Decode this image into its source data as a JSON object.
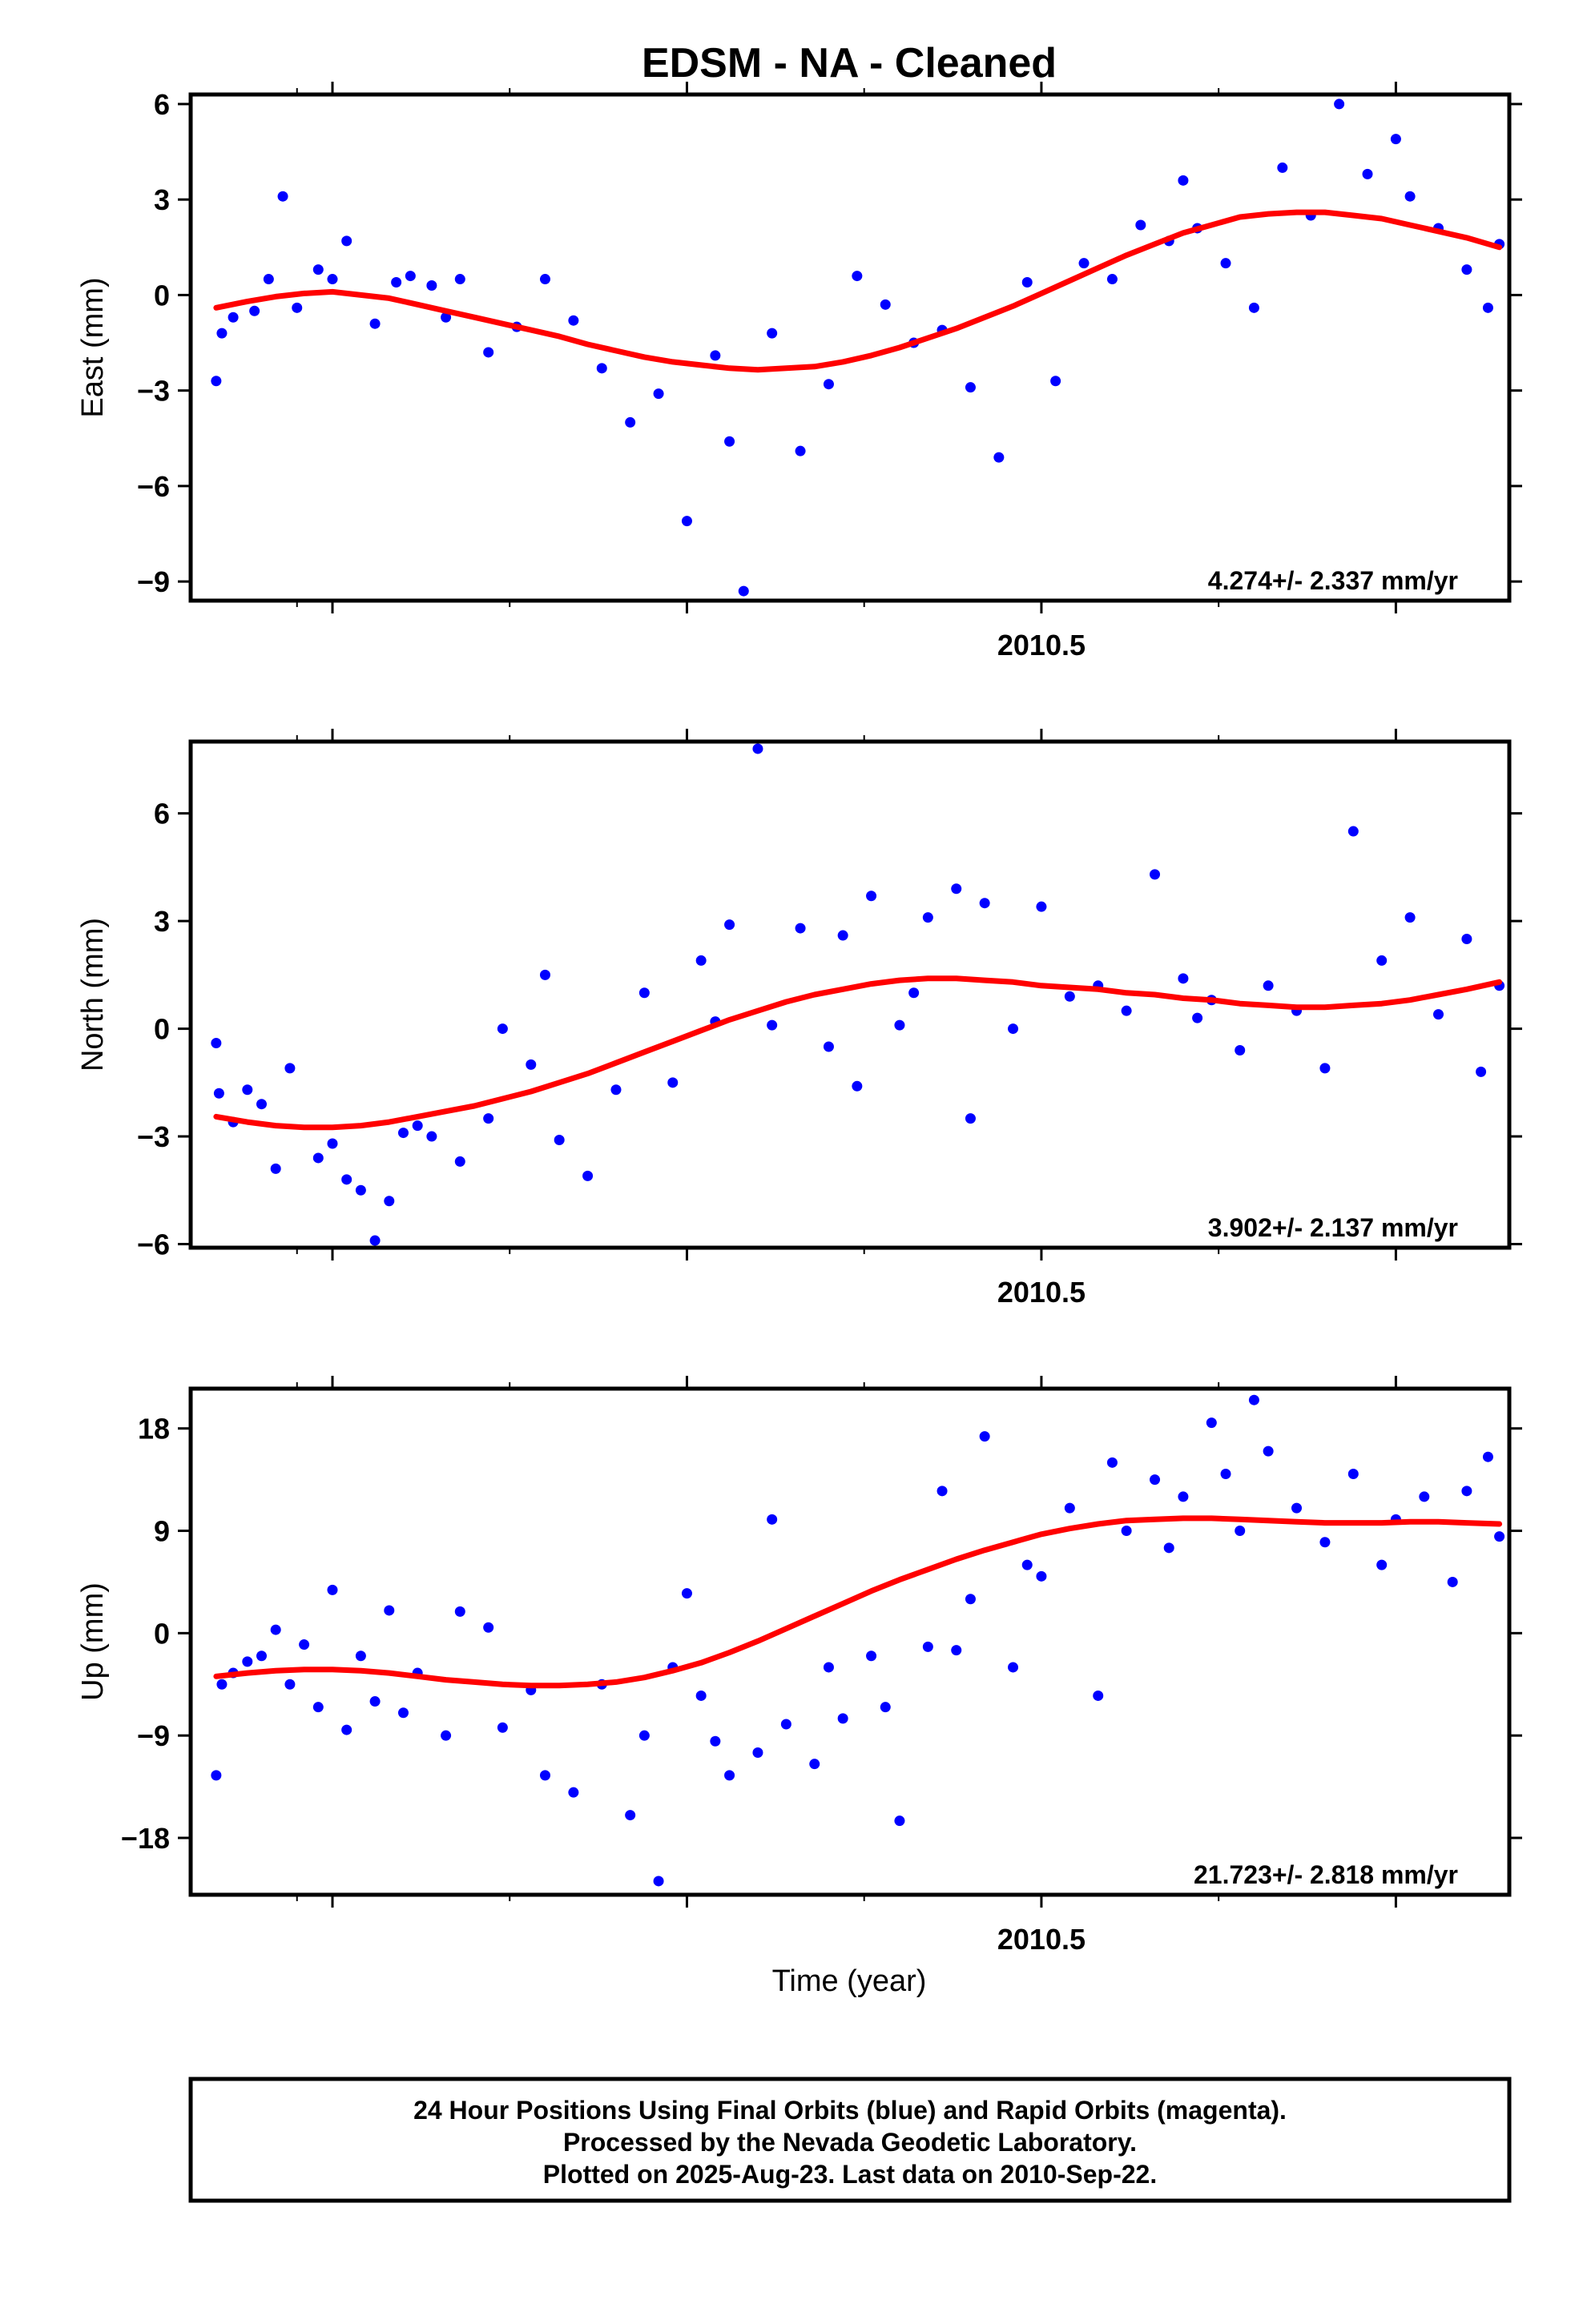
{
  "title": "EDSM  - NA - Cleaned",
  "colors": {
    "final_orbits": "#0000ff",
    "model": "#ff0000",
    "frame": "#000000"
  },
  "x_axis_label": "Time (year)",
  "footer": {
    "line1": "24 Hour Positions Using Final Orbits (blue) and Rapid Orbits (magenta).",
    "line2": "Processed by the Nevada Geodetic Laboratory.",
    "line3": "Plotted on 2025-Aug-23. Last data on 2010-Sep-22."
  },
  "chart_data": [
    {
      "type": "scatter",
      "ylabel": "East (mm)",
      "rate_label": "4.274+/- 2.337 mm/yr",
      "xlim": [
        2009.9,
        2010.83
      ],
      "ylim": [
        -9.6,
        6.3
      ],
      "yticks": [
        -9,
        -6,
        -3,
        0,
        3,
        6
      ],
      "xtick_labels": [
        {
          "x": 2010.5,
          "label": "2010.5"
        }
      ],
      "series": [
        {
          "role": "data",
          "x": [
            2009.918,
            2009.922,
            2009.93,
            2009.945,
            2009.955,
            2009.965,
            2009.975,
            2009.99,
            2010.0,
            2010.01,
            2010.03,
            2010.045,
            2010.055,
            2010.07,
            2010.08,
            2010.09,
            2010.11,
            2010.13,
            2010.15,
            2010.17,
            2010.19,
            2010.21,
            2010.23,
            2010.25,
            2010.27,
            2010.28,
            2010.29,
            2010.31,
            2010.33,
            2010.35,
            2010.37,
            2010.39,
            2010.41,
            2010.43,
            2010.45,
            2010.47,
            2010.49,
            2010.51,
            2010.53,
            2010.55,
            2010.57,
            2010.59,
            2010.6,
            2010.61,
            2010.63,
            2010.65,
            2010.67,
            2010.69,
            2010.71,
            2010.73,
            2010.75,
            2010.76,
            2010.78,
            2010.8,
            2010.815,
            2010.823
          ],
          "y": [
            -2.7,
            -1.2,
            -0.7,
            -0.5,
            0.5,
            3.1,
            -0.4,
            0.8,
            0.5,
            1.7,
            -0.9,
            0.4,
            0.6,
            0.3,
            -0.7,
            0.5,
            -1.8,
            -1.0,
            0.5,
            -0.8,
            -2.3,
            -4.0,
            -3.1,
            -7.1,
            -1.9,
            -4.6,
            -9.3,
            -1.2,
            -4.9,
            -2.8,
            0.6,
            -0.3,
            -1.5,
            -1.1,
            -2.9,
            -5.1,
            0.4,
            -2.7,
            1.0,
            0.5,
            2.2,
            1.7,
            3.6,
            2.1,
            1.0,
            -0.4,
            4.0,
            2.5,
            6.0,
            3.8,
            4.9,
            3.1,
            2.1,
            0.8,
            -0.4,
            1.6
          ]
        },
        {
          "role": "model",
          "x": [
            2009.918,
            2009.94,
            2009.96,
            2009.98,
            2010.0,
            2010.02,
            2010.04,
            2010.06,
            2010.08,
            2010.1,
            2010.12,
            2010.14,
            2010.16,
            2010.18,
            2010.2,
            2010.22,
            2010.24,
            2010.26,
            2010.28,
            2010.3,
            2010.32,
            2010.34,
            2010.36,
            2010.38,
            2010.4,
            2010.42,
            2010.44,
            2010.46,
            2010.48,
            2010.5,
            2010.52,
            2010.54,
            2010.56,
            2010.58,
            2010.6,
            2010.62,
            2010.64,
            2010.66,
            2010.68,
            2010.7,
            2010.72,
            2010.74,
            2010.76,
            2010.78,
            2010.8,
            2010.823
          ],
          "y": [
            -0.4,
            -0.2,
            -0.05,
            0.05,
            0.1,
            0.0,
            -0.1,
            -0.3,
            -0.5,
            -0.7,
            -0.9,
            -1.1,
            -1.3,
            -1.55,
            -1.75,
            -1.95,
            -2.1,
            -2.2,
            -2.3,
            -2.35,
            -2.3,
            -2.25,
            -2.1,
            -1.9,
            -1.65,
            -1.35,
            -1.05,
            -0.7,
            -0.35,
            0.05,
            0.45,
            0.85,
            1.25,
            1.6,
            1.95,
            2.2,
            2.45,
            2.55,
            2.6,
            2.6,
            2.5,
            2.4,
            2.2,
            2.0,
            1.8,
            1.5
          ]
        }
      ]
    },
    {
      "type": "scatter",
      "ylabel": "North (mm)",
      "rate_label": "3.902+/- 2.137 mm/yr",
      "xlim": [
        2009.9,
        2010.83
      ],
      "ylim": [
        -6.1,
        8.0
      ],
      "yticks": [
        -6,
        -3,
        0,
        3,
        6
      ],
      "xtick_labels": [
        {
          "x": 2010.5,
          "label": "2010.5"
        }
      ],
      "series": [
        {
          "role": "data",
          "x": [
            2009.918,
            2009.92,
            2009.93,
            2009.94,
            2009.95,
            2009.96,
            2009.97,
            2009.99,
            2010.0,
            2010.01,
            2010.02,
            2010.03,
            2010.04,
            2010.05,
            2010.06,
            2010.07,
            2010.09,
            2010.11,
            2010.12,
            2010.14,
            2010.15,
            2010.16,
            2010.18,
            2010.2,
            2010.22,
            2010.24,
            2010.26,
            2010.27,
            2010.28,
            2010.3,
            2010.31,
            2010.33,
            2010.35,
            2010.36,
            2010.37,
            2010.38,
            2010.4,
            2010.41,
            2010.42,
            2010.44,
            2010.45,
            2010.46,
            2010.48,
            2010.5,
            2010.52,
            2010.54,
            2010.56,
            2010.58,
            2010.6,
            2010.61,
            2010.62,
            2010.64,
            2010.66,
            2010.68,
            2010.7,
            2010.72,
            2010.74,
            2010.76,
            2010.78,
            2010.8,
            2010.81,
            2010.823
          ],
          "y": [
            -0.4,
            -1.8,
            -2.6,
            -1.7,
            -2.1,
            -3.9,
            -1.1,
            -3.6,
            -3.2,
            -4.2,
            -4.5,
            -5.9,
            -4.8,
            -2.9,
            -2.7,
            -3.0,
            -3.7,
            -2.5,
            0.0,
            -1.0,
            1.5,
            -3.1,
            -4.1,
            -1.7,
            1.0,
            -1.5,
            1.9,
            0.2,
            2.9,
            7.8,
            0.1,
            2.8,
            -0.5,
            2.6,
            -1.6,
            3.7,
            0.1,
            1.0,
            3.1,
            3.9,
            -2.5,
            3.5,
            0.0,
            3.4,
            0.9,
            1.2,
            0.5,
            4.3,
            1.4,
            0.3,
            0.8,
            -0.6,
            1.2,
            0.5,
            -1.1,
            5.5,
            1.9,
            3.1,
            0.4,
            2.5,
            -1.2,
            1.2
          ]
        },
        {
          "role": "model",
          "x": [
            2009.918,
            2009.94,
            2009.96,
            2009.98,
            2010.0,
            2010.02,
            2010.04,
            2010.06,
            2010.08,
            2010.1,
            2010.12,
            2010.14,
            2010.16,
            2010.18,
            2010.2,
            2010.22,
            2010.24,
            2010.26,
            2010.28,
            2010.3,
            2010.32,
            2010.34,
            2010.36,
            2010.38,
            2010.4,
            2010.42,
            2010.44,
            2010.46,
            2010.48,
            2010.5,
            2010.52,
            2010.54,
            2010.56,
            2010.58,
            2010.6,
            2010.62,
            2010.64,
            2010.66,
            2010.68,
            2010.7,
            2010.72,
            2010.74,
            2010.76,
            2010.78,
            2010.8,
            2010.823
          ],
          "y": [
            -2.45,
            -2.6,
            -2.7,
            -2.75,
            -2.75,
            -2.7,
            -2.6,
            -2.45,
            -2.3,
            -2.15,
            -1.95,
            -1.75,
            -1.5,
            -1.25,
            -0.95,
            -0.65,
            -0.35,
            -0.05,
            0.25,
            0.5,
            0.75,
            0.95,
            1.1,
            1.25,
            1.35,
            1.4,
            1.4,
            1.35,
            1.3,
            1.2,
            1.15,
            1.1,
            1.0,
            0.95,
            0.85,
            0.8,
            0.7,
            0.65,
            0.6,
            0.6,
            0.65,
            0.7,
            0.8,
            0.95,
            1.1,
            1.3
          ]
        }
      ]
    },
    {
      "type": "scatter",
      "ylabel": "Up (mm)",
      "rate_label": "21.723+/- 2.818 mm/yr",
      "xlim": [
        2009.9,
        2010.83
      ],
      "ylim": [
        -23.0,
        21.5
      ],
      "yticks": [
        -18,
        -9,
        0,
        9,
        18
      ],
      "xtick_labels": [
        {
          "x": 2010.5,
          "label": "2010.5"
        }
      ],
      "series": [
        {
          "role": "data",
          "x": [
            2009.918,
            2009.922,
            2009.93,
            2009.94,
            2009.95,
            2009.96,
            2009.97,
            2009.98,
            2009.99,
            2010.0,
            2010.01,
            2010.02,
            2010.03,
            2010.04,
            2010.05,
            2010.06,
            2010.08,
            2010.09,
            2010.11,
            2010.12,
            2010.14,
            2010.15,
            2010.17,
            2010.19,
            2010.21,
            2010.22,
            2010.23,
            2010.24,
            2010.25,
            2010.26,
            2010.27,
            2010.28,
            2010.3,
            2010.31,
            2010.32,
            2010.34,
            2010.35,
            2010.36,
            2010.38,
            2010.39,
            2010.4,
            2010.42,
            2010.43,
            2010.44,
            2010.45,
            2010.46,
            2010.48,
            2010.49,
            2010.5,
            2010.52,
            2010.54,
            2010.55,
            2010.56,
            2010.58,
            2010.59,
            2010.6,
            2010.62,
            2010.63,
            2010.64,
            2010.65,
            2010.66,
            2010.68,
            2010.7,
            2010.72,
            2010.74,
            2010.75,
            2010.77,
            2010.79,
            2010.8,
            2010.815,
            2010.823
          ],
          "y": [
            -12.5,
            -4.5,
            -3.5,
            -2.5,
            -2.0,
            0.3,
            -4.5,
            -1.0,
            -6.5,
            3.8,
            -8.5,
            -2.0,
            -6.0,
            2.0,
            -7.0,
            -3.5,
            -9.0,
            1.9,
            0.5,
            -8.3,
            -5.0,
            -12.5,
            -14.0,
            -4.5,
            -16.0,
            -9.0,
            -21.8,
            -3.0,
            3.5,
            -5.5,
            -9.5,
            -12.5,
            -10.5,
            10.0,
            -8.0,
            -11.5,
            -3.0,
            -7.5,
            -2.0,
            -6.5,
            -16.5,
            -1.2,
            12.5,
            -1.5,
            3.0,
            17.3,
            -3.0,
            6.0,
            5.0,
            11.0,
            -5.5,
            15.0,
            9.0,
            13.5,
            7.5,
            12.0,
            18.5,
            14.0,
            9.0,
            20.5,
            16.0,
            11.0,
            8.0,
            14.0,
            6.0,
            10.0,
            12.0,
            4.5,
            12.5,
            15.5,
            8.5
          ]
        },
        {
          "role": "model",
          "x": [
            2009.918,
            2009.94,
            2009.96,
            2009.98,
            2010.0,
            2010.02,
            2010.04,
            2010.06,
            2010.08,
            2010.1,
            2010.12,
            2010.14,
            2010.16,
            2010.18,
            2010.2,
            2010.22,
            2010.24,
            2010.26,
            2010.28,
            2010.3,
            2010.32,
            2010.34,
            2010.36,
            2010.38,
            2010.4,
            2010.42,
            2010.44,
            2010.46,
            2010.48,
            2010.5,
            2010.52,
            2010.54,
            2010.56,
            2010.58,
            2010.6,
            2010.62,
            2010.64,
            2010.66,
            2010.68,
            2010.7,
            2010.72,
            2010.74,
            2010.76,
            2010.78,
            2010.8,
            2010.823
          ],
          "y": [
            -3.8,
            -3.5,
            -3.3,
            -3.2,
            -3.2,
            -3.3,
            -3.5,
            -3.8,
            -4.1,
            -4.3,
            -4.5,
            -4.6,
            -4.6,
            -4.5,
            -4.3,
            -3.9,
            -3.3,
            -2.6,
            -1.7,
            -0.7,
            0.4,
            1.5,
            2.6,
            3.7,
            4.7,
            5.6,
            6.5,
            7.3,
            8.0,
            8.7,
            9.2,
            9.6,
            9.9,
            10.0,
            10.1,
            10.1,
            10.0,
            9.9,
            9.8,
            9.7,
            9.7,
            9.7,
            9.8,
            9.8,
            9.7,
            9.6
          ]
        }
      ]
    }
  ]
}
